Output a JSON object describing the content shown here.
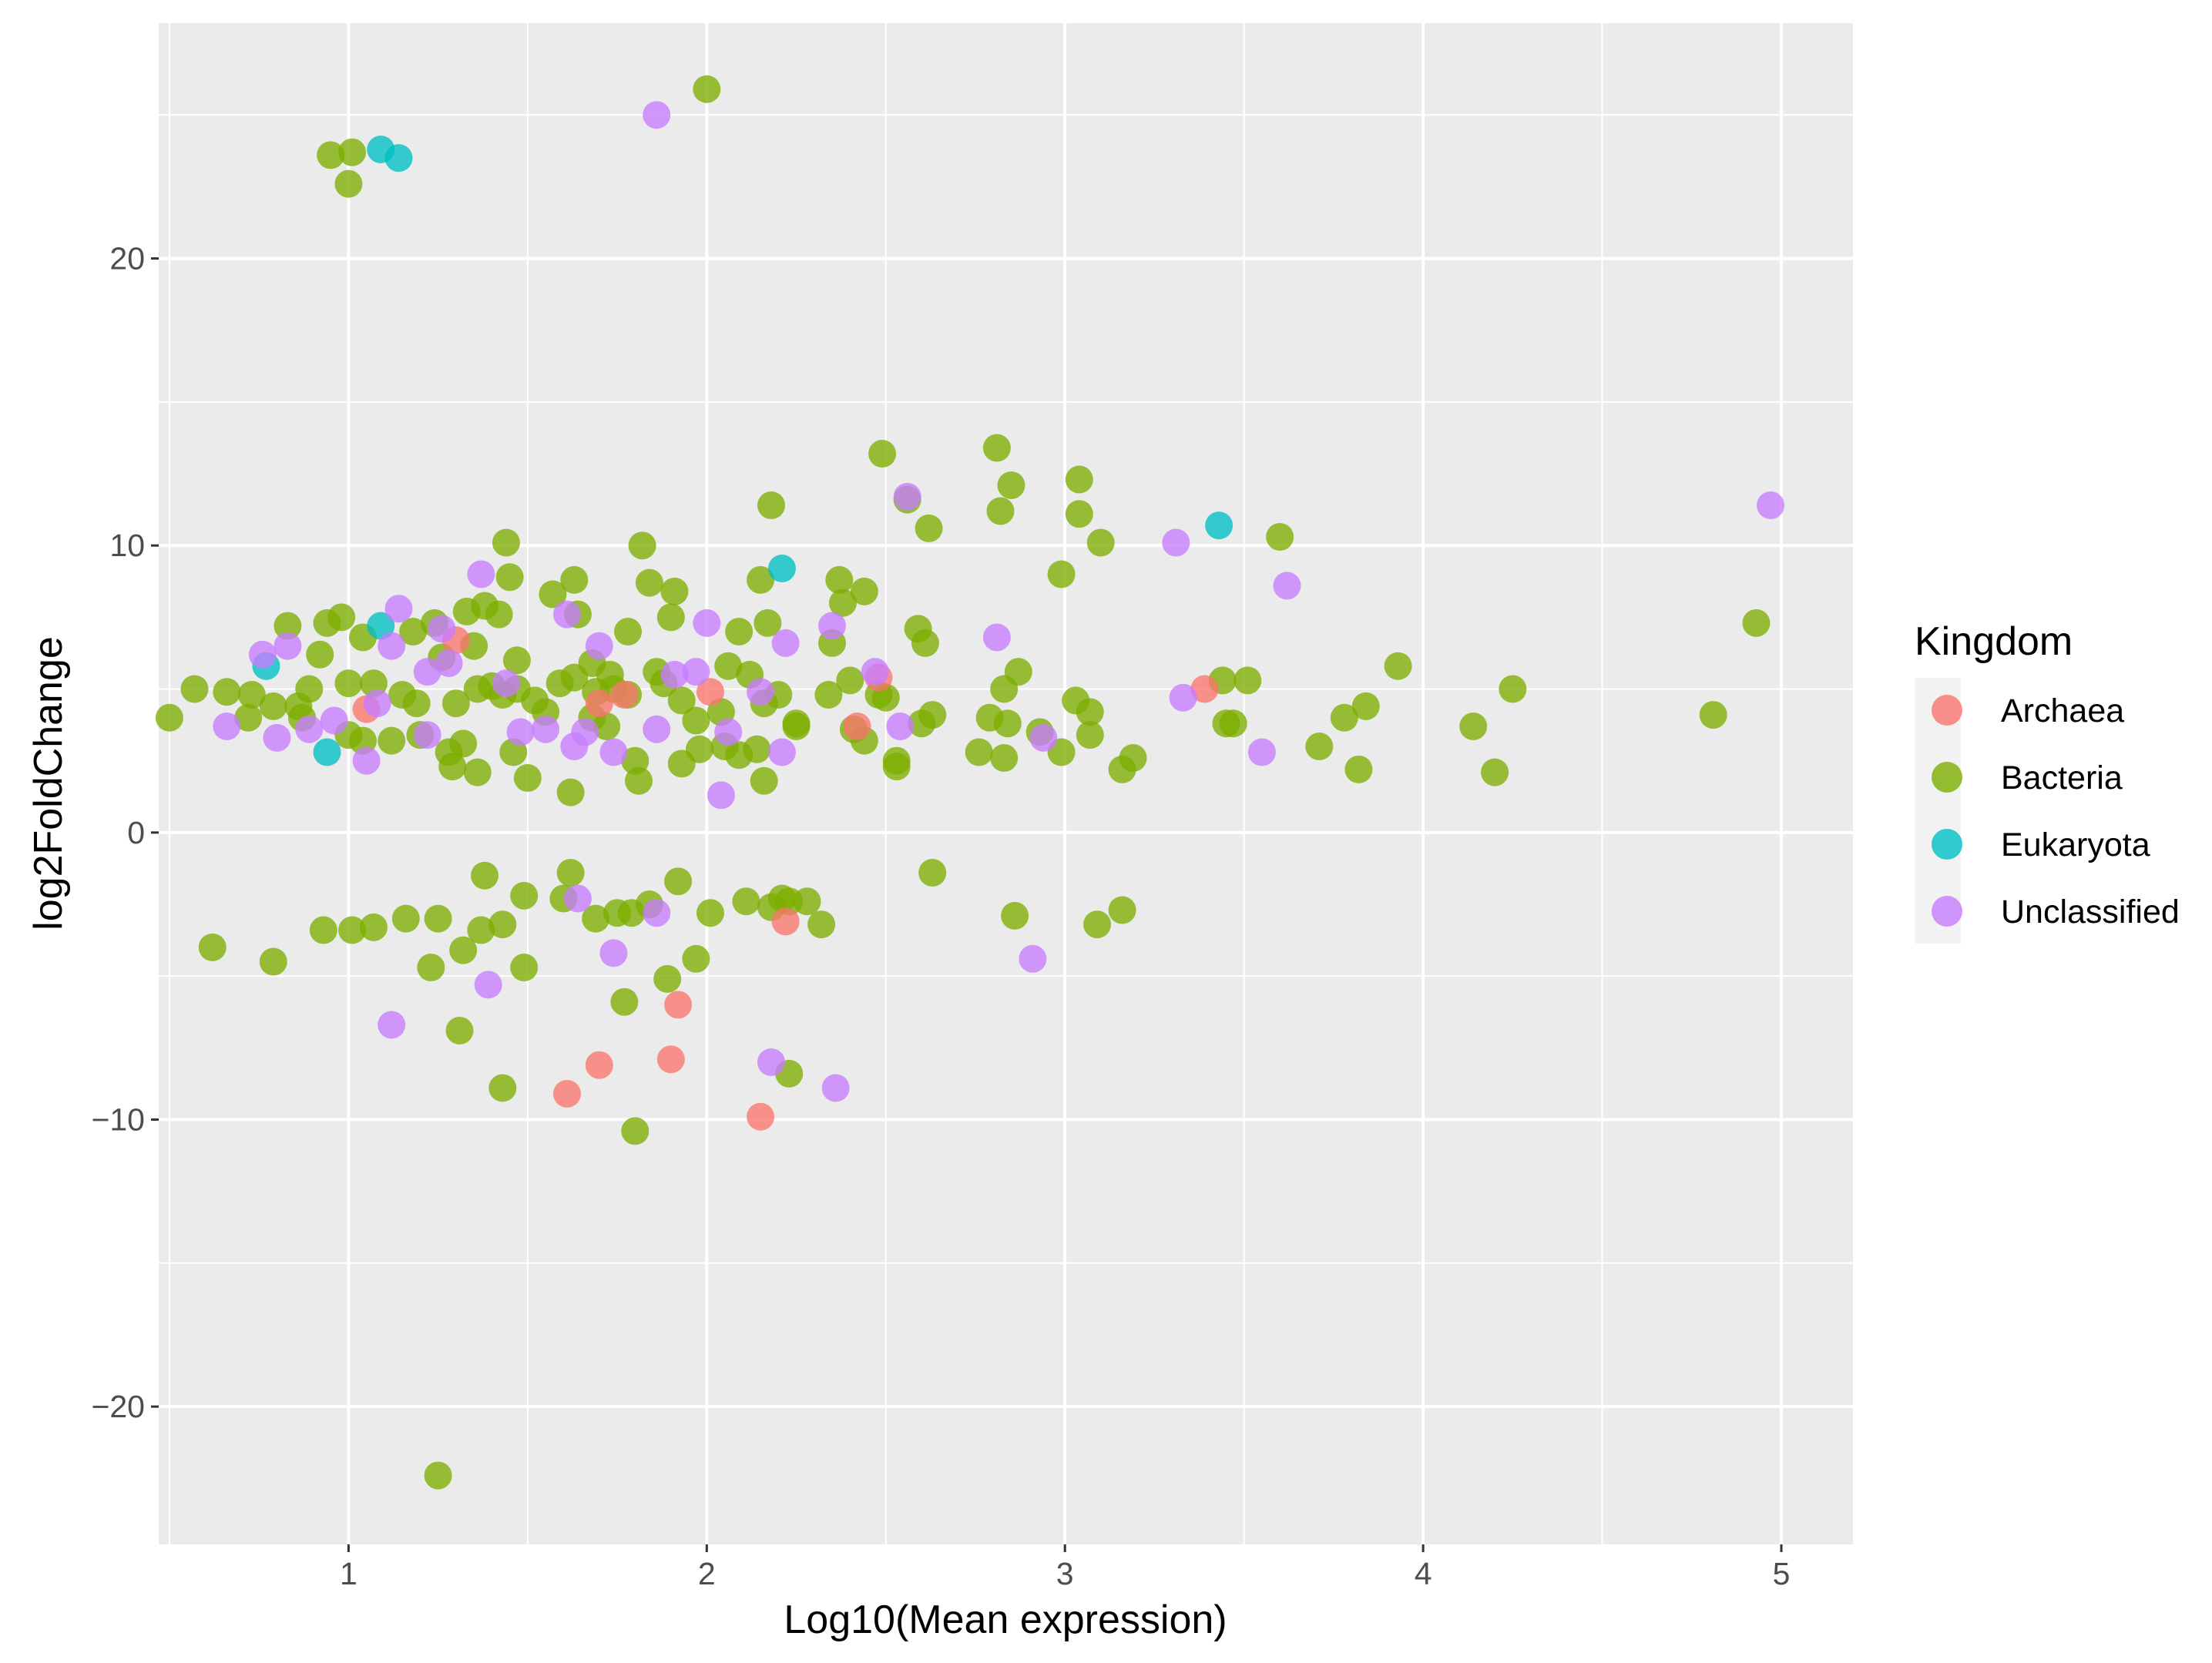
{
  "chart_data": {
    "type": "scatter",
    "xlabel": "Log10(Mean expression)",
    "ylabel": "log2FoldChange",
    "xlim": [
      0.47,
      5.2
    ],
    "ylim": [
      -24.8,
      28.2
    ],
    "x_ticks": [
      1,
      2,
      3,
      4,
      5
    ],
    "y_ticks": [
      -20,
      -10,
      0,
      10,
      20
    ],
    "x_tick_labels": [
      "1",
      "2",
      "3",
      "4",
      "5"
    ],
    "y_tick_labels": [
      "−20",
      "−10",
      "0",
      "10",
      "20"
    ],
    "grid": true,
    "legend": {
      "title": "Kingdom",
      "placement": "right",
      "entries": [
        "Archaea",
        "Bacteria",
        "Eukaryota",
        "Unclassified"
      ]
    },
    "colors": {
      "Archaea": "#F8766D",
      "Bacteria": "#7CAE00",
      "Eukaryota": "#00BFC4",
      "Unclassified": "#C77CFF",
      "panel": "#EBEBEB",
      "grid": "#FFFFFF"
    },
    "series": [
      {
        "name": "Bacteria",
        "points": [
          [
            0.95,
            23.6
          ],
          [
            1.01,
            23.7
          ],
          [
            1.0,
            22.6
          ],
          [
            2.0,
            25.9
          ],
          [
            1.25,
            -22.4
          ],
          [
            2.49,
            13.2
          ],
          [
            2.81,
            13.4
          ],
          [
            2.85,
            12.1
          ],
          [
            3.04,
            12.3
          ],
          [
            2.18,
            11.4
          ],
          [
            2.56,
            11.6
          ],
          [
            2.82,
            11.2
          ],
          [
            3.04,
            11.1
          ],
          [
            2.62,
            10.6
          ],
          [
            3.1,
            10.1
          ],
          [
            3.6,
            10.3
          ],
          [
            1.44,
            10.1
          ],
          [
            1.82,
            10.0
          ],
          [
            2.99,
            9.0
          ],
          [
            1.45,
            8.9
          ],
          [
            1.63,
            8.8
          ],
          [
            1.84,
            8.7
          ],
          [
            1.91,
            8.4
          ],
          [
            1.57,
            8.3
          ],
          [
            2.15,
            8.8
          ],
          [
            2.37,
            8.8
          ],
          [
            2.44,
            8.4
          ],
          [
            2.38,
            8.0
          ],
          [
            1.42,
            7.6
          ],
          [
            1.38,
            7.9
          ],
          [
            1.33,
            7.7
          ],
          [
            1.24,
            7.3
          ],
          [
            1.18,
            7.0
          ],
          [
            0.98,
            7.5
          ],
          [
            0.94,
            7.3
          ],
          [
            0.83,
            7.2
          ],
          [
            1.04,
            6.8
          ],
          [
            1.26,
            6.1
          ],
          [
            1.35,
            6.5
          ],
          [
            1.47,
            6.0
          ],
          [
            1.64,
            7.6
          ],
          [
            1.78,
            7.0
          ],
          [
            1.9,
            7.5
          ],
          [
            2.09,
            7.0
          ],
          [
            2.17,
            7.3
          ],
          [
            2.35,
            6.6
          ],
          [
            2.59,
            7.1
          ],
          [
            2.61,
            6.6
          ],
          [
            2.87,
            5.6
          ],
          [
            2.83,
            5.0
          ],
          [
            1.68,
            5.9
          ],
          [
            1.73,
            5.5
          ],
          [
            1.86,
            5.6
          ],
          [
            2.06,
            5.8
          ],
          [
            2.12,
            5.5
          ],
          [
            0.57,
            5.0
          ],
          [
            0.66,
            4.9
          ],
          [
            0.73,
            4.8
          ],
          [
            0.79,
            4.4
          ],
          [
            0.86,
            4.4
          ],
          [
            0.89,
            5.0
          ],
          [
            0.92,
            6.2
          ],
          [
            1.0,
            5.2
          ],
          [
            1.07,
            5.2
          ],
          [
            1.15,
            4.8
          ],
          [
            1.19,
            4.5
          ],
          [
            1.3,
            4.5
          ],
          [
            1.36,
            5.0
          ],
          [
            1.4,
            5.1
          ],
          [
            1.43,
            4.8
          ],
          [
            1.47,
            5.0
          ],
          [
            1.52,
            4.6
          ],
          [
            1.55,
            4.2
          ],
          [
            1.59,
            5.2
          ],
          [
            1.63,
            5.4
          ],
          [
            1.69,
            4.9
          ],
          [
            1.74,
            5.0
          ],
          [
            1.78,
            4.8
          ],
          [
            1.88,
            5.2
          ],
          [
            1.93,
            4.6
          ],
          [
            1.97,
            3.9
          ],
          [
            2.04,
            4.2
          ],
          [
            2.16,
            4.5
          ],
          [
            2.2,
            4.8
          ],
          [
            2.25,
            3.8
          ],
          [
            2.34,
            4.8
          ],
          [
            2.4,
            5.3
          ],
          [
            2.48,
            4.8
          ],
          [
            2.5,
            4.7
          ],
          [
            2.63,
            4.1
          ],
          [
            2.79,
            4.0
          ],
          [
            2.84,
            3.8
          ],
          [
            3.03,
            4.6
          ],
          [
            3.07,
            4.2
          ],
          [
            3.07,
            3.4
          ],
          [
            3.44,
            5.3
          ],
          [
            3.51,
            5.3
          ],
          [
            3.93,
            5.8
          ],
          [
            3.84,
            4.4
          ],
          [
            3.78,
            4.0
          ],
          [
            4.25,
            5.0
          ],
          [
            4.14,
            3.7
          ],
          [
            4.93,
            7.3
          ],
          [
            4.81,
            4.1
          ],
          [
            0.5,
            4.0
          ],
          [
            0.72,
            4.0
          ],
          [
            0.87,
            4.0
          ],
          [
            1.12,
            3.2
          ],
          [
            1.2,
            3.4
          ],
          [
            1.28,
            2.8
          ],
          [
            1.32,
            3.1
          ],
          [
            1.36,
            2.1
          ],
          [
            1.46,
            2.8
          ],
          [
            1.5,
            1.9
          ],
          [
            1.62,
            1.4
          ],
          [
            1.68,
            4.0
          ],
          [
            1.72,
            3.7
          ],
          [
            1.8,
            2.5
          ],
          [
            1.81,
            1.8
          ],
          [
            1.93,
            2.4
          ],
          [
            1.98,
            2.9
          ],
          [
            2.05,
            3.0
          ],
          [
            2.09,
            2.7
          ],
          [
            2.14,
            2.9
          ],
          [
            2.16,
            1.8
          ],
          [
            2.25,
            3.7
          ],
          [
            2.41,
            3.6
          ],
          [
            2.44,
            3.2
          ],
          [
            2.53,
            2.5
          ],
          [
            2.53,
            2.3
          ],
          [
            2.6,
            3.8
          ],
          [
            2.76,
            2.8
          ],
          [
            2.83,
            2.6
          ],
          [
            2.93,
            3.5
          ],
          [
            2.99,
            2.8
          ],
          [
            3.16,
            2.2
          ],
          [
            3.19,
            2.6
          ],
          [
            3.45,
            3.8
          ],
          [
            3.47,
            3.8
          ],
          [
            3.71,
            3.0
          ],
          [
            3.82,
            2.2
          ],
          [
            4.2,
            2.1
          ],
          [
            1.29,
            2.3
          ],
          [
            1.04,
            3.2
          ],
          [
            1.0,
            3.4
          ],
          [
            0.62,
            -4.0
          ],
          [
            0.79,
            -4.5
          ],
          [
            0.93,
            -3.4
          ],
          [
            1.01,
            -3.4
          ],
          [
            1.07,
            -3.3
          ],
          [
            1.16,
            -3.0
          ],
          [
            1.25,
            -3.0
          ],
          [
            1.23,
            -4.7
          ],
          [
            1.32,
            -4.1
          ],
          [
            1.37,
            -3.4
          ],
          [
            1.43,
            -3.2
          ],
          [
            1.38,
            -1.5
          ],
          [
            1.49,
            -2.2
          ],
          [
            1.49,
            -4.7
          ],
          [
            1.6,
            -2.3
          ],
          [
            1.62,
            -1.4
          ],
          [
            1.69,
            -3.0
          ],
          [
            1.75,
            -2.8
          ],
          [
            1.79,
            -2.8
          ],
          [
            1.84,
            -2.5
          ],
          [
            1.92,
            -1.7
          ],
          [
            1.97,
            -4.4
          ],
          [
            2.01,
            -2.8
          ],
          [
            2.11,
            -2.4
          ],
          [
            2.18,
            -2.6
          ],
          [
            2.21,
            -2.3
          ],
          [
            2.23,
            -2.4
          ],
          [
            2.28,
            -2.4
          ],
          [
            2.32,
            -3.2
          ],
          [
            2.63,
            -1.4
          ],
          [
            2.86,
            -2.9
          ],
          [
            3.09,
            -3.2
          ],
          [
            3.16,
            -2.7
          ],
          [
            1.89,
            -5.1
          ],
          [
            1.77,
            -5.9
          ],
          [
            1.31,
            -6.9
          ],
          [
            1.43,
            -8.9
          ],
          [
            1.8,
            -10.4
          ],
          [
            2.23,
            -8.4
          ]
        ]
      },
      {
        "name": "Archaea",
        "points": [
          [
            1.7,
            4.5
          ],
          [
            1.77,
            4.8
          ],
          [
            2.01,
            4.9
          ],
          [
            2.42,
            3.7
          ],
          [
            2.48,
            5.4
          ],
          [
            3.39,
            5.0
          ],
          [
            1.05,
            4.3
          ],
          [
            1.3,
            6.7
          ],
          [
            2.22,
            -3.1
          ],
          [
            1.92,
            -6.0
          ],
          [
            1.9,
            -7.9
          ],
          [
            1.7,
            -8.1
          ],
          [
            1.61,
            -9.1
          ],
          [
            2.15,
            -9.9
          ]
        ]
      },
      {
        "name": "Eukaryota",
        "points": [
          [
            1.09,
            23.8
          ],
          [
            1.14,
            23.5
          ],
          [
            2.21,
            9.2
          ],
          [
            3.43,
            10.7
          ],
          [
            0.77,
            5.8
          ],
          [
            0.94,
            2.8
          ],
          [
            1.09,
            7.2
          ]
        ]
      },
      {
        "name": "Unclassified",
        "points": [
          [
            1.86,
            25.0
          ],
          [
            2.56,
            11.7
          ],
          [
            3.31,
            10.1
          ],
          [
            3.62,
            8.6
          ],
          [
            4.97,
            11.4
          ],
          [
            1.37,
            9.0
          ],
          [
            1.14,
            7.8
          ],
          [
            1.26,
            7.1
          ],
          [
            1.61,
            7.6
          ],
          [
            2.0,
            7.3
          ],
          [
            2.35,
            7.2
          ],
          [
            2.81,
            6.8
          ],
          [
            0.76,
            6.2
          ],
          [
            0.83,
            6.5
          ],
          [
            1.12,
            6.5
          ],
          [
            1.28,
            5.9
          ],
          [
            1.22,
            5.6
          ],
          [
            1.44,
            5.2
          ],
          [
            1.7,
            6.5
          ],
          [
            1.91,
            5.5
          ],
          [
            1.97,
            5.6
          ],
          [
            2.15,
            4.9
          ],
          [
            2.22,
            6.6
          ],
          [
            2.47,
            5.6
          ],
          [
            3.33,
            4.7
          ],
          [
            0.66,
            3.7
          ],
          [
            0.8,
            3.3
          ],
          [
            0.89,
            3.6
          ],
          [
            0.96,
            3.9
          ],
          [
            1.05,
            2.5
          ],
          [
            1.08,
            4.5
          ],
          [
            1.22,
            3.4
          ],
          [
            1.48,
            3.5
          ],
          [
            1.55,
            3.6
          ],
          [
            1.63,
            3.0
          ],
          [
            1.66,
            3.5
          ],
          [
            1.74,
            2.8
          ],
          [
            1.86,
            3.6
          ],
          [
            2.06,
            3.5
          ],
          [
            2.04,
            1.3
          ],
          [
            2.21,
            2.8
          ],
          [
            2.54,
            3.7
          ],
          [
            2.94,
            3.3
          ],
          [
            3.55,
            2.8
          ],
          [
            1.39,
            -5.3
          ],
          [
            1.12,
            -6.7
          ],
          [
            1.64,
            -2.3
          ],
          [
            1.74,
            -4.2
          ],
          [
            1.86,
            -2.8
          ],
          [
            2.18,
            -8.0
          ],
          [
            2.36,
            -8.9
          ],
          [
            2.91,
            -4.4
          ]
        ]
      }
    ]
  }
}
